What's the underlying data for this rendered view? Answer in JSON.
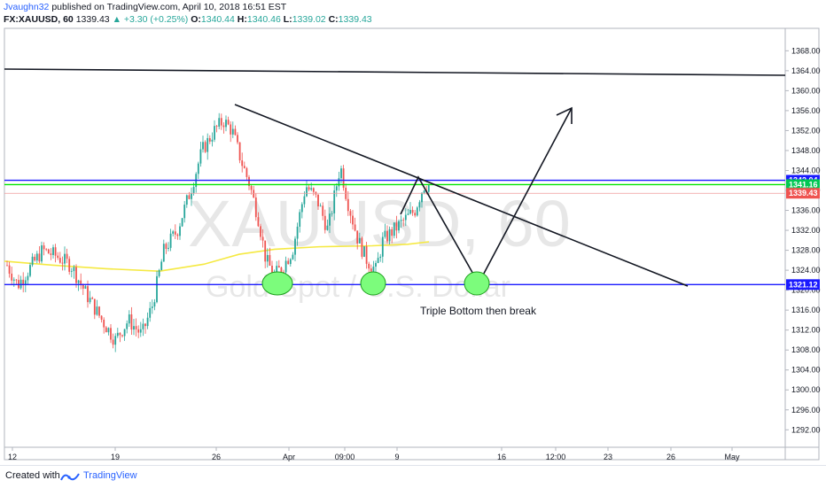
{
  "header": {
    "author": "Jvaughn32",
    "published": "published on TradingView.com, April 10, 2018 16:51 EST",
    "symbol": "FX:XAUUSD, 60",
    "price": "1339.43",
    "change_arrow": "▲",
    "change": "+3.30 (+0.25%)",
    "o_label": "O:",
    "o_value": "1340.44",
    "h_label": "H:",
    "h_value": "1340.46",
    "l_label": "L:",
    "l_value": "1339.02",
    "c_label": "C:",
    "c_value": "1339.43"
  },
  "footer": {
    "created_with": "Created with",
    "brand": "TradingView",
    "logo_icon": "tradingview-logo-icon"
  },
  "chart_data": {
    "type": "candlestick",
    "watermark_symbol": "XAUUSD, 60",
    "watermark_name": "Gold Spot / U.S. Dollar",
    "y_ticks": [
      1292,
      1296,
      1300,
      1304,
      1308,
      1312,
      1316,
      1320,
      1324,
      1328,
      1332,
      1336,
      1340,
      1344,
      1348,
      1352,
      1356,
      1360,
      1364,
      1368
    ],
    "y_tick_labels": [
      "1292.00",
      "1296.00",
      "1300.00",
      "1304.00",
      "1308.00",
      "1312.00",
      "1316.00",
      "1320.00",
      "1324.00",
      "1328.00",
      "1332.00",
      "1336.00",
      "1340.00",
      "1344.00",
      "1348.00",
      "1352.00",
      "1356.00",
      "1360.00",
      "1364.00",
      "1368.00"
    ],
    "ylim": [
      1288.5,
      1372.5
    ],
    "x_tick_labels": [
      "12",
      "19",
      "26",
      "Apr",
      "09:00",
      "9",
      "16",
      "12:00",
      "23",
      "26",
      "May"
    ],
    "price_tags": [
      {
        "value": 1342.04,
        "label": "1342.04",
        "color": "#1a1aff"
      },
      {
        "value": 1341.16,
        "label": "1341.16",
        "color": "#00c853"
      },
      {
        "value": 1339.43,
        "label": "1339.43",
        "color": "#ef5350"
      },
      {
        "value": 1321.12,
        "label": "1321.12",
        "color": "#1a1aff"
      }
    ],
    "horizontal_lines": [
      {
        "value": 1342.04,
        "color": "#1a1aff"
      },
      {
        "value": 1341.16,
        "color": "#00e600"
      },
      {
        "value": 1321.12,
        "color": "#1a1aff"
      }
    ],
    "resistance_line": {
      "from": 1363.2,
      "to": 1362.4
    },
    "annotation": "Triple Bottom then break",
    "candle_up_color": "#26a69a",
    "candle_down_color": "#ef5350",
    "ma_color": "#f5e942",
    "highlight_color": "#7CFC7C"
  }
}
